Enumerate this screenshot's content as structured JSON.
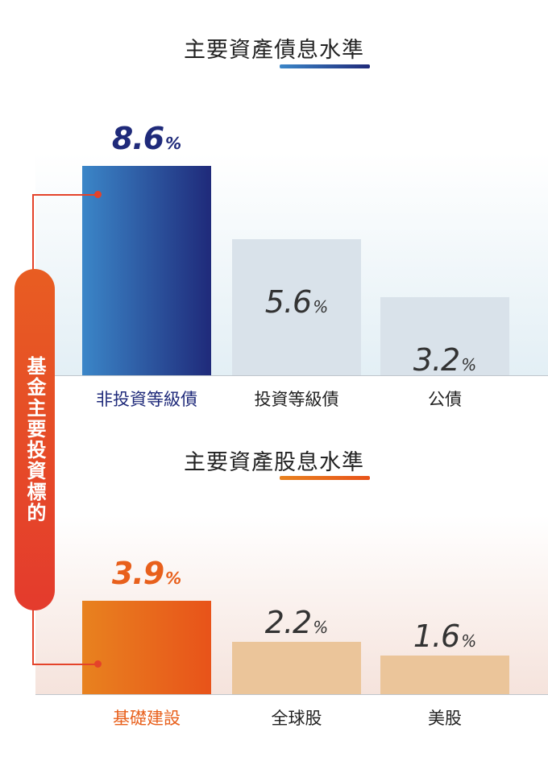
{
  "side_label": "基金主要投資標的",
  "chart_data": [
    {
      "type": "bar",
      "title": "主要資產債息水準",
      "categories": [
        "非投資等級債",
        "投資等級債",
        "公債"
      ],
      "values": [
        8.6,
        5.6,
        3.2
      ],
      "value_labels": [
        "8.6",
        "5.6",
        "3.2"
      ],
      "unit": "%",
      "ylim": [
        0,
        9
      ],
      "highlight_index": 0,
      "colors": {
        "highlight_start": "#3b86c8",
        "highlight_end": "#1f2a7a",
        "other": "#d9e2ea",
        "highlight_text": "#1f2a7a",
        "underline_start": "#3b86c8",
        "underline_end": "#1f2a7a",
        "bg_top": "#ffffff",
        "bg_bottom": "#e3eff5"
      }
    },
    {
      "type": "bar",
      "title": "主要資產股息水準",
      "categories": [
        "基礎建設",
        "全球股",
        "美股"
      ],
      "values": [
        3.9,
        2.2,
        1.6
      ],
      "value_labels": [
        "3.9",
        "2.2",
        "1.6"
      ],
      "unit": "%",
      "ylim": [
        0,
        4.5
      ],
      "highlight_index": 0,
      "colors": {
        "highlight_start": "#e8821f",
        "highlight_end": "#e8531a",
        "other": "#ebc59a",
        "highlight_text": "#e8601c",
        "underline_start": "#e8821f",
        "underline_end": "#e8531a",
        "bg_top": "#ffffff",
        "bg_bottom": "#f5e3dc"
      }
    }
  ]
}
